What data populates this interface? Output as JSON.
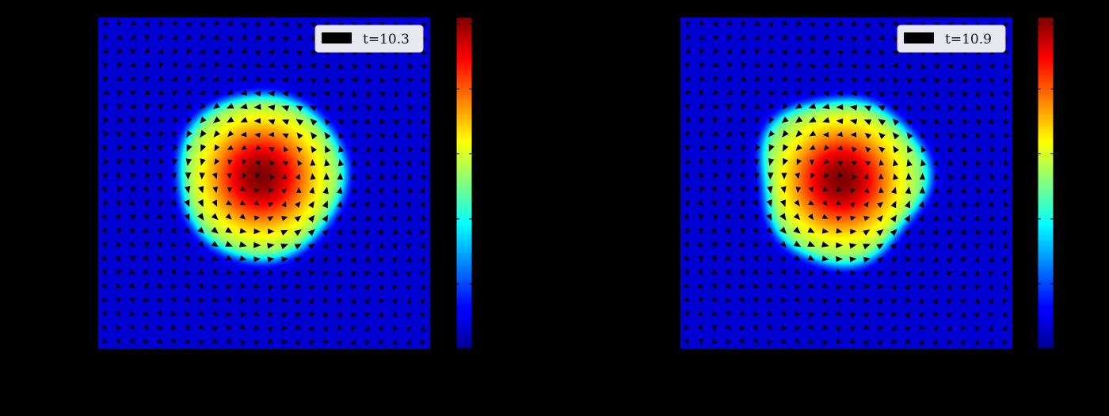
{
  "chart_data": [
    {
      "type": "heatmap",
      "overlay": "quiver",
      "colormap": "jet",
      "legend": {
        "label": "t=10.3",
        "placement": "top-right"
      },
      "colorbar": {
        "position": "right",
        "ticks": 5
      },
      "blob": {
        "center": [
          -0.02,
          0.04
        ],
        "radius": 0.5,
        "wobble": 0.02,
        "rotation": "counterclockwise"
      },
      "grid": {
        "cols": 24,
        "rows": 24
      }
    },
    {
      "type": "heatmap",
      "overlay": "quiver",
      "colormap": "jet",
      "legend": {
        "label": "t=10.9",
        "placement": "top-right"
      },
      "colorbar": {
        "position": "right",
        "ticks": 5
      },
      "blob": {
        "center": [
          -0.03,
          0.02
        ],
        "radius": 0.5,
        "wobble": 0.05,
        "rotation": "counterclockwise"
      },
      "grid": {
        "cols": 24,
        "rows": 24
      }
    }
  ],
  "colors": {
    "background": "#000000",
    "field_low": "#00008f",
    "arrow": "#000000",
    "legend_bg": "#e8e8f0"
  }
}
